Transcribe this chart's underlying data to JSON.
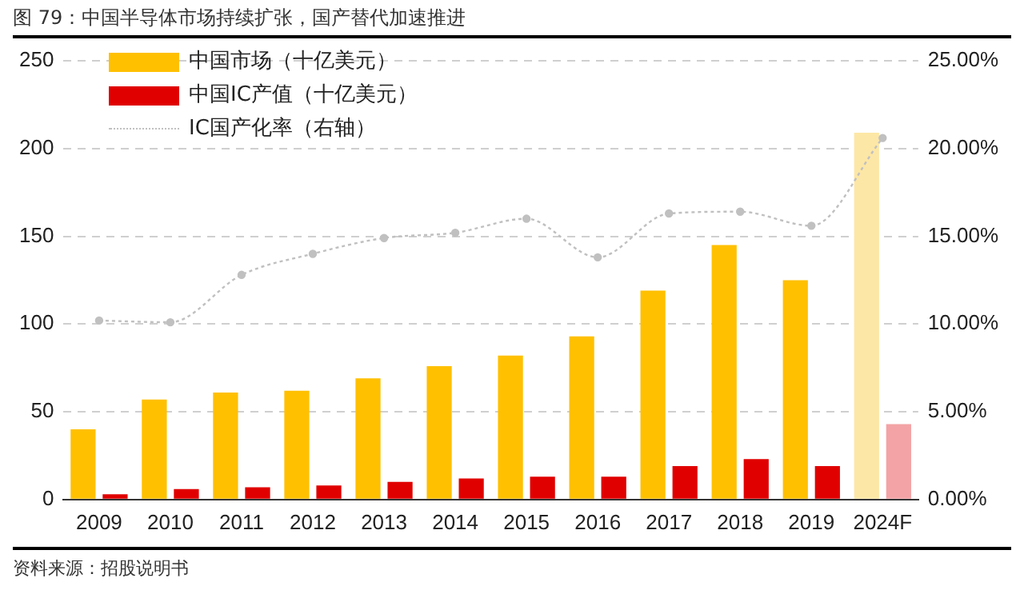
{
  "chart_data": {
    "type": "bar",
    "title": "图 79：中国半导体市场持续扩张，国产替代加速推进",
    "categories": [
      "2009",
      "2010",
      "2011",
      "2012",
      "2013",
      "2014",
      "2015",
      "2016",
      "2017",
      "2018",
      "2019",
      "2024F"
    ],
    "series": [
      {
        "name": "中国市场（十亿美元）",
        "color": "#ffc000",
        "colors": [
          "#ffc000",
          "#ffc000",
          "#ffc000",
          "#ffc000",
          "#ffc000",
          "#ffc000",
          "#ffc000",
          "#ffc000",
          "#ffc000",
          "#ffc000",
          "#ffc000",
          "#fde7a6"
        ],
        "values": [
          40,
          57,
          61,
          62,
          69,
          76,
          82,
          93,
          119,
          145,
          125,
          209
        ]
      },
      {
        "name": "中国IC产值（十亿美元）",
        "color": "#e00000",
        "colors": [
          "#e00000",
          "#e00000",
          "#e00000",
          "#e00000",
          "#e00000",
          "#e00000",
          "#e00000",
          "#e00000",
          "#e00000",
          "#e00000",
          "#e00000",
          "#f3a3a6"
        ],
        "values": [
          3,
          6,
          7,
          8,
          10,
          12,
          13,
          13,
          19,
          23,
          19,
          43
        ]
      },
      {
        "name": "IC国产化率（右轴）",
        "type": "line",
        "axis": "y2",
        "color": "#c0c0c0",
        "marker": "circle",
        "line_style": "dotted",
        "values": [
          10.2,
          10.1,
          12.8,
          14,
          14.9,
          15.2,
          16,
          13.8,
          16.3,
          16.4,
          15.6,
          20.6
        ]
      }
    ],
    "ylim": [
      0,
      250
    ],
    "yticks": [
      0,
      50,
      100,
      150,
      200,
      250
    ],
    "y2lim": [
      0,
      25
    ],
    "y2ticks": [
      {
        "value": 0,
        "label": "0.00%"
      },
      {
        "value": 5,
        "label": "5.00%"
      },
      {
        "value": 10,
        "label": "10.00%"
      },
      {
        "value": 15,
        "label": "15.00%"
      },
      {
        "value": 20,
        "label": "20.00%"
      },
      {
        "value": 25,
        "label": "25.00%"
      }
    ],
    "grid": "y",
    "legend": "top left",
    "annotations": [
      "资料来源：招股说明书"
    ]
  }
}
